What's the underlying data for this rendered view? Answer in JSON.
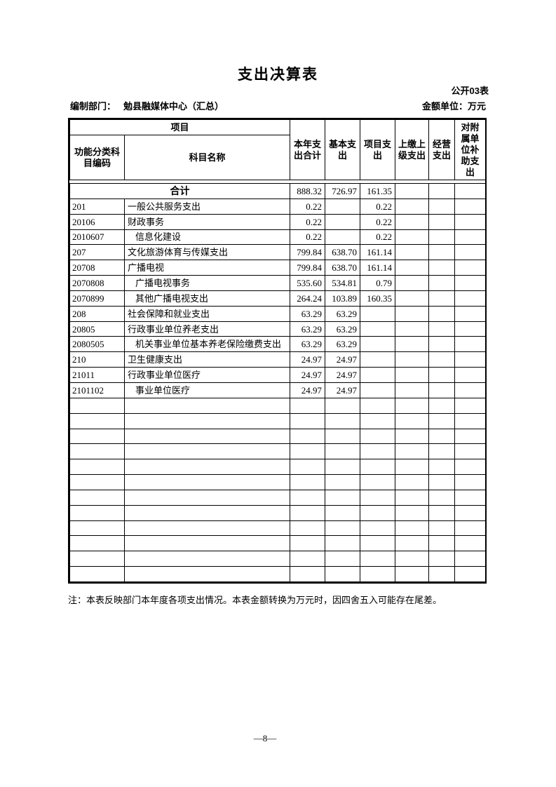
{
  "header": {
    "title": "支出决算表",
    "table_code": "公开03表",
    "dept_label": "编制部门：",
    "dept_value": "勉县融媒体中心（汇总）",
    "unit_label": "金额单位：万元"
  },
  "table": {
    "project_header": "项目",
    "code_header": "功能分类科目编码",
    "subject_header": "科目名称",
    "value_columns": [
      "本年支出合计",
      "基本支出",
      "项目支出",
      "上缴上级支出",
      "经营支出",
      "对附属单位补助支出"
    ],
    "total_label": "合计",
    "total_values": [
      "888.32",
      "726.97",
      "161.35",
      "",
      "",
      ""
    ],
    "rows": [
      {
        "code": "201",
        "name": "一般公共服务支出",
        "indent": false,
        "values": [
          "0.22",
          "",
          "0.22",
          "",
          "",
          ""
        ]
      },
      {
        "code": "20106",
        "name": "财政事务",
        "indent": false,
        "values": [
          "0.22",
          "",
          "0.22",
          "",
          "",
          ""
        ]
      },
      {
        "code": "2010607",
        "name": "信息化建设",
        "indent": true,
        "values": [
          "0.22",
          "",
          "0.22",
          "",
          "",
          ""
        ]
      },
      {
        "code": "207",
        "name": "文化旅游体育与传媒支出",
        "indent": false,
        "values": [
          "799.84",
          "638.70",
          "161.14",
          "",
          "",
          ""
        ]
      },
      {
        "code": "20708",
        "name": "广播电视",
        "indent": false,
        "values": [
          "799.84",
          "638.70",
          "161.14",
          "",
          "",
          ""
        ]
      },
      {
        "code": "2070808",
        "name": "广播电视事务",
        "indent": true,
        "values": [
          "535.60",
          "534.81",
          "0.79",
          "",
          "",
          ""
        ]
      },
      {
        "code": "2070899",
        "name": "其他广播电视支出",
        "indent": true,
        "values": [
          "264.24",
          "103.89",
          "160.35",
          "",
          "",
          ""
        ]
      },
      {
        "code": "208",
        "name": "社会保障和就业支出",
        "indent": false,
        "values": [
          "63.29",
          "63.29",
          "",
          "",
          "",
          ""
        ]
      },
      {
        "code": "20805",
        "name": "行政事业单位养老支出",
        "indent": false,
        "values": [
          "63.29",
          "63.29",
          "",
          "",
          "",
          ""
        ]
      },
      {
        "code": "2080505",
        "name": "机关事业单位基本养老保险缴费支出",
        "indent": true,
        "values": [
          "63.29",
          "63.29",
          "",
          "",
          "",
          ""
        ]
      },
      {
        "code": "210",
        "name": "卫生健康支出",
        "indent": false,
        "values": [
          "24.97",
          "24.97",
          "",
          "",
          "",
          ""
        ]
      },
      {
        "code": "21011",
        "name": "行政事业单位医疗",
        "indent": false,
        "values": [
          "24.97",
          "24.97",
          "",
          "",
          "",
          ""
        ]
      },
      {
        "code": "2101102",
        "name": "事业单位医疗",
        "indent": true,
        "values": [
          "24.97",
          "24.97",
          "",
          "",
          "",
          ""
        ]
      }
    ],
    "empty_row_count": 12
  },
  "footer": {
    "note": "注：本表反映部门本年度各项支出情况。本表金额转换为万元时，因四舍五入可能存在尾差。",
    "page_number": "—8—"
  }
}
